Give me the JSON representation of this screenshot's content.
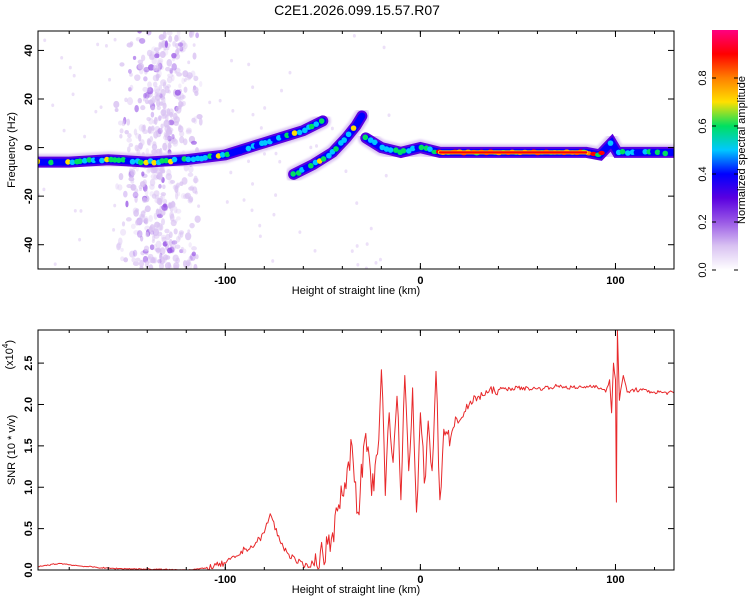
{
  "title": "C2E1.2026.099.15.57.R07",
  "colors": {
    "snr_line": "#e8292b",
    "colormap": [
      "#ffffff",
      "#d9c2f2",
      "#9a59e6",
      "#5a00e0",
      "#0000ff",
      "#00c8ff",
      "#00e060",
      "#ffe000",
      "#ff8000",
      "#ff0000",
      "#ff0080"
    ]
  },
  "chart_data": [
    {
      "type": "heatmap",
      "xlabel": "Height of straight line (km)",
      "ylabel": "Frequency (Hz)",
      "xlim": [
        -196,
        130
      ],
      "ylim": [
        -50,
        48
      ],
      "xticks": [
        {
          "value": -100,
          "label": "-100"
        },
        {
          "value": 0,
          "label": "0"
        },
        {
          "value": 100,
          "label": "100"
        }
      ],
      "yticks": [
        {
          "value": -40,
          "label": "-40"
        },
        {
          "value": -20,
          "label": "-20"
        },
        {
          "value": 0,
          "label": "0"
        },
        {
          "value": 20,
          "label": "20"
        },
        {
          "value": 40,
          "label": "40"
        }
      ],
      "colorbar": {
        "label": "Normalized spectral amplitude",
        "range": [
          0.0,
          1.0
        ],
        "ticks": [
          {
            "value": 0.0,
            "label": "0.0"
          },
          {
            "value": 0.2,
            "label": "0.2"
          },
          {
            "value": 0.4,
            "label": "0.4"
          },
          {
            "value": 0.6,
            "label": "0.6"
          },
          {
            "value": 0.8,
            "label": "0.8"
          }
        ]
      },
      "tracks": [
        {
          "name": "main-track-left",
          "points": [
            [
              -196,
              -6
            ],
            [
              -180,
              -6
            ],
            [
              -160,
              -5
            ],
            [
              -140,
              -6
            ],
            [
              -120,
              -5
            ],
            [
              -100,
              -3
            ],
            [
              -80,
              2
            ],
            [
              -60,
              7
            ],
            [
              -50,
              11
            ]
          ]
        },
        {
          "name": "lower-branch",
          "points": [
            [
              -65,
              -11
            ],
            [
              -55,
              -7
            ],
            [
              -45,
              -2
            ],
            [
              -38,
              4
            ],
            [
              -33,
              9
            ],
            [
              -30,
              13
            ]
          ]
        },
        {
          "name": "main-track-right",
          "points": [
            [
              -28,
              4
            ],
            [
              -20,
              0
            ],
            [
              -10,
              -2
            ],
            [
              0,
              0
            ],
            [
              10,
              -2
            ],
            [
              30,
              -2
            ],
            [
              60,
              -2
            ],
            [
              85,
              -2
            ],
            [
              92,
              -3
            ],
            [
              98,
              2
            ],
            [
              101,
              -2
            ],
            [
              130,
              -2
            ]
          ]
        }
      ],
      "noise_band": {
        "x_from": -145,
        "x_to": -123
      }
    },
    {
      "type": "line",
      "xlabel": "Height of straight line (km)",
      "ylabel": "SNR (10 * v/v)",
      "exponent_label": "(x10",
      "exponent_power": "4",
      "exponent_close": ")",
      "xlim": [
        -196,
        130
      ],
      "ylim": [
        0,
        2.9
      ],
      "xticks": [
        {
          "value": -100,
          "label": "-100"
        },
        {
          "value": 0,
          "label": "0"
        },
        {
          "value": 100,
          "label": "100"
        }
      ],
      "yticks": [
        {
          "value": 0.0,
          "label": "0.0"
        },
        {
          "value": 0.5,
          "label": "0.5"
        },
        {
          "value": 1.0,
          "label": "1.0"
        },
        {
          "value": 1.5,
          "label": "1.5"
        },
        {
          "value": 2.0,
          "label": "2.0"
        },
        {
          "value": 2.5,
          "label": "2.5"
        }
      ],
      "series": [
        {
          "name": "SNR",
          "x": [
            -196,
            -185,
            -175,
            -160,
            -140,
            -120,
            -110,
            -100,
            -95,
            -90,
            -85,
            -80,
            -77,
            -72,
            -68,
            -64,
            -60,
            -55,
            -50,
            -45,
            -40,
            -35,
            -32,
            -28,
            -25,
            -22,
            -20,
            -18,
            -16,
            -14,
            -12,
            -10,
            -8,
            -6,
            -4,
            -2,
            0,
            2,
            4,
            6,
            8,
            10,
            12,
            15,
            18,
            20,
            25,
            30,
            35,
            40,
            50,
            60,
            70,
            80,
            90,
            95,
            97,
            98,
            99,
            100,
            100.5,
            101,
            102,
            104,
            106,
            110,
            120,
            130
          ],
          "y": [
            0.04,
            0.08,
            0.05,
            0.02,
            0.01,
            0.0,
            0.02,
            0.08,
            0.15,
            0.25,
            0.3,
            0.45,
            0.68,
            0.35,
            0.2,
            0.12,
            0.05,
            0.08,
            0.2,
            0.45,
            0.9,
            1.5,
            0.7,
            1.65,
            0.9,
            1.4,
            2.42,
            0.9,
            1.9,
            1.3,
            2.1,
            0.85,
            2.35,
            1.2,
            2.2,
            0.7,
            1.9,
            1.05,
            1.8,
            1.2,
            2.4,
            0.85,
            1.7,
            1.5,
            1.85,
            1.8,
            2.0,
            2.1,
            2.15,
            2.18,
            2.2,
            2.19,
            2.22,
            2.2,
            2.23,
            2.15,
            2.3,
            1.9,
            2.5,
            2.3,
            0.82,
            2.9,
            2.05,
            2.35,
            2.15,
            2.18,
            2.15,
            2.14
          ]
        }
      ]
    }
  ]
}
